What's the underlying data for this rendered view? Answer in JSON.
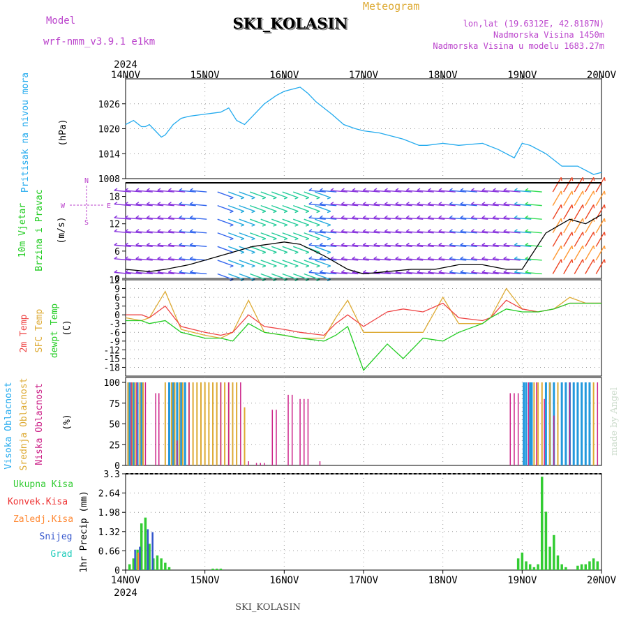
{
  "header": {
    "label_meteogram": "Meteogram",
    "label_model": "Model",
    "model_name": "wrf-nmm_v3.9.1 e1km",
    "station": "SKI_KOLASIN",
    "lonlat": "lon,lat (19.6312E, 42.8187N)",
    "elev": "Nadmorska Visina 1450m",
    "elev_model": "Nadmorska Visina u modelu 1683.27m",
    "footer_station": "SKI_KOLASIN",
    "watermark": "made by Angel"
  },
  "colors": {
    "pressure": "#22aaee",
    "temp2m": "#ee4444",
    "sfc": "#ddaa33",
    "dew": "#22cc22",
    "high_cloud": "#2299dd",
    "mid_cloud": "#ddaa33",
    "low_cloud": "#cc2288",
    "total_precip": "#33cc33",
    "conv_precip": "#ee3333",
    "frozen_precip": "#ff8833",
    "snow": "#3355cc",
    "graupel": "#22ccbb",
    "purple_text": "#bb44cc"
  },
  "chart_data": [
    {
      "type": "line",
      "panel": "pressure",
      "ylabel_1": "Pritisak na nivou mora",
      "ylabel_units": "(hPa)",
      "year": "2024",
      "x_ticks": [
        "14NOV",
        "15NOV",
        "16NOV",
        "17NOV",
        "18NOV",
        "19NOV",
        "20NOV"
      ],
      "y_ticks": [
        "1008",
        "1014",
        "1020",
        "1026"
      ],
      "ylim": [
        1008,
        1032
      ],
      "x_days": [
        0,
        0.1,
        0.2,
        0.25,
        0.3,
        0.4,
        0.45,
        0.5,
        0.6,
        0.7,
        0.8,
        1,
        1.2,
        1.3,
        1.4,
        1.5,
        1.6,
        1.75,
        1.9,
        2,
        2.1,
        2.2,
        2.3,
        2.4,
        2.5,
        2.6,
        2.75,
        2.9,
        3,
        3.2,
        3.4,
        3.5,
        3.7,
        3.8,
        4,
        4.2,
        4.5,
        4.7,
        4.9,
        5,
        5.1,
        5.3,
        5.5,
        5.7,
        5.9,
        6
      ],
      "values": [
        1021,
        1022,
        1020.5,
        1020.5,
        1021,
        1019,
        1018,
        1018.5,
        1021,
        1022.5,
        1023,
        1023.5,
        1024,
        1025,
        1022,
        1021,
        1023,
        1026,
        1028,
        1029,
        1029.5,
        1030,
        1028.5,
        1026.5,
        1025,
        1023.5,
        1021,
        1020,
        1019.5,
        1019,
        1018,
        1017.5,
        1016,
        1016,
        1016.5,
        1016,
        1016.5,
        1015,
        1013,
        1016.5,
        1016,
        1014,
        1011,
        1011,
        1009,
        1009.5
      ]
    },
    {
      "type": "wind",
      "panel": "wind",
      "ylabel_1": "10m Vjetar",
      "ylabel_2": "Brzina i Pravac",
      "ylabel_units": "(m/s)",
      "compass": [
        "N",
        "S",
        "W",
        "E"
      ],
      "y_ticks": [
        "0",
        "6",
        "12",
        "18"
      ],
      "ylim": [
        0,
        21
      ],
      "x_days": [
        0,
        0.3,
        0.5,
        0.8,
        1,
        1.2,
        1.4,
        1.6,
        1.8,
        2,
        2.2,
        2.5,
        2.8,
        3,
        3.3,
        3.6,
        3.9,
        4.2,
        4.5,
        4.8,
        5,
        5.3,
        5.6,
        5.8,
        6
      ],
      "speed": [
        2,
        1.5,
        2,
        3,
        4,
        5,
        6,
        7,
        7.5,
        8,
        7.5,
        5,
        2,
        1,
        1.5,
        2,
        2,
        3,
        3,
        2,
        2,
        10,
        13,
        12,
        14
      ]
    },
    {
      "type": "line",
      "panel": "temperature",
      "ylabel_1": "2m Temp",
      "ylabel_2": "SFC Temp",
      "ylabel_3": "dewpt Temp",
      "ylabel_units": "(C)",
      "y_ticks": [
        "12",
        "9",
        "6",
        "3",
        "0",
        "-3",
        "-6",
        "-9",
        "-12",
        "-15",
        "-18"
      ],
      "ylim": [
        -21,
        12
      ],
      "x_days": [
        0,
        0.2,
        0.3,
        0.5,
        0.7,
        1,
        1.2,
        1.35,
        1.55,
        1.75,
        2,
        2.2,
        2.5,
        2.65,
        2.8,
        3,
        3.3,
        3.5,
        3.75,
        4,
        4.2,
        4.5,
        4.6,
        4.8,
        5,
        5.2,
        5.4,
        5.6,
        5.8,
        6
      ],
      "series": [
        {
          "name": "2m Temp",
          "values": [
            0,
            0,
            -1,
            3,
            -4,
            -6,
            -7,
            -6,
            0,
            -4,
            -5,
            -6,
            -7,
            -3,
            0,
            -4,
            1,
            2,
            1,
            4,
            -1,
            -2,
            -1,
            5,
            2,
            1,
            2,
            4,
            4,
            4
          ]
        },
        {
          "name": "SFC Temp",
          "values": [
            -1,
            -2,
            -1,
            8,
            -5,
            -7,
            -8,
            -6,
            5,
            -6,
            -7,
            -8,
            -8,
            -1,
            5,
            -6,
            -6,
            -6,
            -6,
            6,
            -3,
            -3,
            -1,
            9,
            2,
            1,
            2,
            6,
            4,
            4
          ]
        },
        {
          "name": "dewpt Temp",
          "values": [
            -2,
            -2,
            -3,
            -2,
            -6,
            -8,
            -8,
            -9,
            -3,
            -6,
            -7,
            -8,
            -9,
            -7,
            -4,
            -19,
            -10,
            -15,
            -8,
            -9,
            -6,
            -3,
            -1,
            2,
            1,
            1,
            2,
            4,
            4,
            4
          ]
        }
      ]
    },
    {
      "type": "bar",
      "panel": "clouds",
      "ylabel_1": "Visoka Oblacnost",
      "ylabel_2": "Srednja Oblacnost",
      "ylabel_3": "Niska Oblacnost",
      "ylabel_units": "(%)",
      "y_ticks": [
        "0",
        "25",
        "50",
        "75",
        "100"
      ],
      "ylim": [
        0,
        100
      ],
      "high_x": [
        0.05,
        0.1,
        0.15,
        0.2,
        0.55,
        0.6,
        0.65,
        0.7,
        0.75,
        5.02,
        5.05,
        5.1,
        5.12,
        5.3,
        5.35,
        5.4,
        5.5,
        5.55,
        5.6,
        5.65,
        5.7,
        5.75,
        5.8,
        5.85
      ],
      "high_v": [
        100,
        100,
        100,
        100,
        100,
        100,
        100,
        100,
        100,
        100,
        100,
        100,
        100,
        100,
        100,
        100,
        100,
        100,
        100,
        100,
        100,
        100,
        100,
        100
      ],
      "mid_x": [
        0.03,
        0.08,
        0.12,
        0.18,
        0.22,
        0.5,
        0.58,
        0.62,
        0.68,
        0.72,
        0.8,
        0.85,
        0.9,
        0.95,
        1.0,
        1.05,
        1.1,
        1.15,
        1.2,
        1.25,
        1.3,
        1.35,
        1.4,
        1.5,
        5.15,
        5.2,
        5.25,
        5.35,
        5.45,
        5.9
      ],
      "mid_v": [
        100,
        100,
        100,
        100,
        100,
        100,
        100,
        100,
        100,
        100,
        100,
        100,
        100,
        100,
        100,
        100,
        100,
        100,
        100,
        100,
        100,
        100,
        100,
        70,
        100,
        100,
        100,
        100,
        100,
        100
      ],
      "low_x": [
        0.07,
        0.14,
        0.25,
        0.38,
        0.42,
        0.65,
        0.8,
        1.2,
        1.3,
        1.45,
        1.55,
        1.65,
        1.7,
        1.75,
        1.85,
        1.9,
        2.05,
        2.1,
        2.2,
        2.25,
        2.3,
        2.45,
        4.85,
        4.9,
        4.95,
        5.08,
        5.18,
        5.28,
        5.4,
        5.6,
        5.95
      ],
      "low_v": [
        100,
        100,
        100,
        87,
        87,
        30,
        100,
        100,
        100,
        100,
        5,
        3,
        3,
        3,
        67,
        67,
        85,
        85,
        80,
        80,
        80,
        5,
        87,
        87,
        87,
        100,
        100,
        80,
        60,
        100,
        100
      ]
    },
    {
      "type": "bar",
      "panel": "precip",
      "ylabel_1": "Ukupna Kisa",
      "ylabel_2": "Konvek.Kisa",
      "ylabel_3": "Zaledj.Kisa",
      "ylabel_4": "Snijeg",
      "ylabel_5": "Grad",
      "ylabel_units": "1hr Precip (mm)",
      "y_ticks": [
        "0",
        "0.66",
        "1.32",
        "1.98",
        "2.64",
        "3.3"
      ],
      "ylim": [
        0,
        3.3
      ],
      "x_ticks": [
        "14NOV",
        "15NOV",
        "16NOV",
        "17NOV",
        "18NOV",
        "19NOV",
        "20NOV"
      ],
      "year": "2024",
      "total_x": [
        0.05,
        0.1,
        0.15,
        0.2,
        0.25,
        0.3,
        0.35,
        0.4,
        0.45,
        0.5,
        0.55,
        1.1,
        1.15,
        1.2,
        4.95,
        5.0,
        5.05,
        5.1,
        5.15,
        5.2,
        5.25,
        5.3,
        5.35,
        5.4,
        5.45,
        5.5,
        5.55,
        5.7,
        5.75,
        5.8,
        5.85,
        5.9,
        5.95
      ],
      "total_v": [
        0.2,
        0.4,
        0.7,
        1.6,
        1.8,
        0.9,
        0.4,
        0.5,
        0.4,
        0.25,
        0.1,
        0.05,
        0.05,
        0.05,
        0.4,
        0.6,
        0.3,
        0.2,
        0.1,
        0.2,
        3.2,
        2.0,
        0.8,
        1.2,
        0.5,
        0.2,
        0.1,
        0.15,
        0.2,
        0.2,
        0.3,
        0.4,
        0.3
      ],
      "snow_x": [
        0.12,
        0.18,
        0.28,
        0.34
      ],
      "snow_v": [
        0.7,
        0.8,
        1.4,
        1.3
      ],
      "frozen_x": [
        0.16
      ],
      "frozen_v": [
        0.6
      ]
    }
  ]
}
